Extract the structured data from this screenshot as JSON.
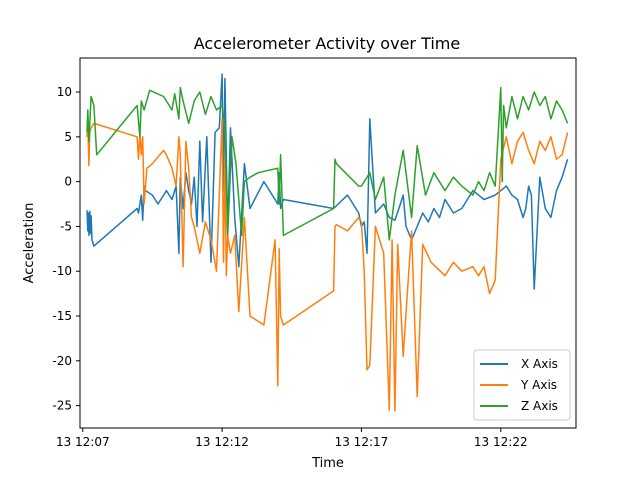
{
  "chart_data": {
    "type": "line",
    "title": "Accelerometer Activity over Time",
    "xlabel": "Time",
    "ylabel": "Acceleration",
    "x_ticks": [
      "13 12:07",
      "13 12:12",
      "13 12:17",
      "13 12:22"
    ],
    "x_tick_values": [
      7.0,
      12.0,
      17.0,
      22.0
    ],
    "xlim": [
      6.9,
      24.7
    ],
    "ylim": [
      -27.5,
      13.8
    ],
    "y_ticks": [
      10,
      5,
      0,
      -5,
      -10,
      -15,
      -20,
      -25
    ],
    "grid": false,
    "legend_position": "lower-right",
    "series": [
      {
        "name": "X Axis",
        "color": "#1f77b4",
        "x": [
          7.15,
          7.18,
          7.2,
          7.22,
          7.25,
          7.28,
          7.3,
          7.33,
          7.4,
          8.95,
          9.0,
          9.1,
          9.15,
          9.2,
          9.25,
          9.5,
          9.7,
          10.0,
          10.2,
          10.35,
          10.45,
          10.5,
          10.6,
          10.7,
          10.8,
          10.9,
          11.0,
          11.1,
          11.2,
          11.3,
          11.45,
          11.6,
          11.75,
          11.9,
          12.0,
          12.05,
          12.1,
          12.2,
          12.3,
          12.45,
          12.6,
          12.8,
          13.0,
          13.5,
          14.0,
          14.05,
          14.1,
          14.2,
          16.0,
          16.5,
          16.9,
          17.0,
          17.1,
          17.2,
          17.3,
          17.5,
          17.8,
          18.0,
          18.2,
          18.4,
          18.5,
          18.6,
          18.8,
          19.0,
          19.2,
          19.4,
          19.6,
          19.8,
          20.0,
          20.3,
          20.6,
          21.0,
          21.4,
          21.8,
          22.0,
          22.2,
          22.4,
          22.6,
          22.8,
          22.9,
          23.0,
          23.1,
          23.2,
          23.4,
          23.6,
          23.8,
          24.0,
          24.2,
          24.4
        ],
        "y": [
          -3.2,
          -5.5,
          -3.5,
          -6.0,
          -3.3,
          -5.8,
          -3.8,
          -6.5,
          -7.2,
          -3.0,
          -3.5,
          -1.5,
          -4.3,
          -0.5,
          -1.0,
          -1.5,
          -2.5,
          -1.0,
          -2.0,
          -0.5,
          -8.0,
          0.5,
          -3.0,
          1.0,
          -1.0,
          -2.5,
          0.5,
          -5.0,
          4.5,
          -4.5,
          5.0,
          -9.0,
          5.5,
          6.0,
          12.0,
          -1.0,
          11.5,
          -5.5,
          6.0,
          -4.0,
          -9.5,
          2.0,
          -3.0,
          0.0,
          -2.5,
          1.0,
          -3.0,
          -2.0,
          -3.0,
          -1.5,
          -3.5,
          -5.0,
          -4.5,
          -8.0,
          7.0,
          -3.5,
          -2.5,
          -4.0,
          -4.3,
          -2.5,
          -1.5,
          -5.0,
          -6.5,
          -5.0,
          -3.5,
          -4.5,
          -3.0,
          -4.0,
          -2.0,
          -3.5,
          -3.0,
          -1.0,
          -2.0,
          -1.5,
          -1.0,
          -0.5,
          -1.5,
          -2.0,
          -4.0,
          -3.0,
          -0.5,
          -1.5,
          -12.0,
          0.5,
          -3.0,
          -4.0,
          -1.0,
          0.5,
          2.5
        ]
      },
      {
        "name": "Y Axis",
        "color": "#ff7f0e",
        "x": [
          7.15,
          7.18,
          7.22,
          7.25,
          7.3,
          7.4,
          8.95,
          9.0,
          9.05,
          9.1,
          9.15,
          9.2,
          9.3,
          9.5,
          9.9,
          10.0,
          10.2,
          10.35,
          10.45,
          10.5,
          10.6,
          10.7,
          10.8,
          10.9,
          11.0,
          11.2,
          11.4,
          11.6,
          11.8,
          12.0,
          12.05,
          12.1,
          12.15,
          12.2,
          12.3,
          12.45,
          12.6,
          12.8,
          13.0,
          13.5,
          13.9,
          14.0,
          14.05,
          14.1,
          14.2,
          16.0,
          16.05,
          16.1,
          16.5,
          16.9,
          17.0,
          17.1,
          17.2,
          17.3,
          17.5,
          17.8,
          18.0,
          18.1,
          18.2,
          18.3,
          18.5,
          18.7,
          18.8,
          19.0,
          19.2,
          19.5,
          20.0,
          20.3,
          20.6,
          21.0,
          21.2,
          21.4,
          21.6,
          21.8,
          22.0,
          22.2,
          22.4,
          22.6,
          22.8,
          23.0,
          23.2,
          23.4,
          23.6,
          23.8,
          24.0,
          24.2,
          24.4
        ],
        "y": [
          5.0,
          6.5,
          1.8,
          5.5,
          6.0,
          6.5,
          5.0,
          2.5,
          5.5,
          3.0,
          5.0,
          -2.5,
          1.5,
          2.0,
          3.5,
          3.0,
          1.5,
          -0.5,
          5.0,
          3.0,
          -9.5,
          4.5,
          1.5,
          -4.0,
          -5.0,
          -8.0,
          -4.5,
          -6.5,
          -10.0,
          7.0,
          -9.0,
          2.5,
          -10.5,
          -6.0,
          -8.0,
          -6.0,
          -14.5,
          -4.0,
          -15.0,
          -16.0,
          -6.5,
          -22.8,
          -7.5,
          -15.0,
          -16.0,
          -12.2,
          -5.0,
          -4.8,
          -5.5,
          -4.0,
          -4.5,
          -10.0,
          -21.0,
          -20.5,
          -5.0,
          -8.0,
          -25.5,
          -6.5,
          -25.6,
          -7.0,
          -19.5,
          -10.0,
          -5.5,
          -24.0,
          -7.0,
          -9.0,
          -10.5,
          -9.0,
          -10.0,
          -9.5,
          -10.5,
          -9.5,
          -12.5,
          -11.0,
          2.5,
          5.0,
          2.0,
          4.5,
          5.5,
          3.5,
          2.0,
          4.5,
          3.5,
          5.0,
          2.5,
          3.0,
          5.5
        ]
      },
      {
        "name": "Z Axis",
        "color": "#2ca02c",
        "x": [
          7.15,
          7.18,
          7.22,
          7.25,
          7.3,
          7.4,
          7.5,
          8.95,
          9.05,
          9.1,
          9.2,
          9.4,
          9.9,
          10.2,
          10.3,
          10.45,
          10.5,
          10.6,
          10.8,
          11.0,
          11.2,
          11.4,
          11.6,
          11.8,
          12.0,
          12.1,
          12.2,
          12.35,
          12.5,
          12.7,
          12.8,
          13.0,
          13.3,
          14.0,
          14.05,
          14.1,
          14.2,
          16.0,
          16.05,
          16.1,
          16.9,
          17.0,
          17.3,
          17.5,
          17.8,
          18.0,
          18.2,
          18.5,
          18.8,
          19.0,
          19.3,
          19.6,
          20.0,
          20.3,
          20.6,
          21.0,
          21.2,
          21.4,
          21.6,
          21.8,
          22.0,
          22.05,
          22.1,
          22.2,
          22.4,
          22.6,
          22.8,
          23.0,
          23.2,
          23.4,
          23.6,
          23.8,
          24.0,
          24.2,
          24.4
        ],
        "y": [
          5.5,
          8.0,
          4.5,
          6.5,
          9.5,
          8.5,
          3.0,
          8.5,
          5.0,
          9.0,
          8.0,
          10.2,
          9.5,
          8.0,
          9.8,
          7.0,
          10.5,
          9.0,
          6.5,
          9.0,
          10.0,
          7.5,
          9.5,
          8.0,
          8.5,
          6.0,
          -6.0,
          5.0,
          2.0,
          -6.0,
          0.0,
          0.5,
          1.0,
          1.5,
          -2.5,
          3.0,
          -6.0,
          -3.0,
          2.5,
          2.0,
          -0.5,
          -0.5,
          1.0,
          -2.0,
          0.5,
          -6.5,
          -1.5,
          3.5,
          -4.0,
          4.0,
          -1.5,
          1.0,
          -1.0,
          0.5,
          -0.5,
          -1.5,
          0.0,
          -1.0,
          1.0,
          -0.5,
          10.5,
          0.0,
          8.5,
          6.0,
          9.5,
          7.0,
          9.5,
          8.0,
          10.0,
          8.5,
          9.5,
          7.0,
          9.0,
          8.0,
          6.5
        ]
      }
    ]
  }
}
